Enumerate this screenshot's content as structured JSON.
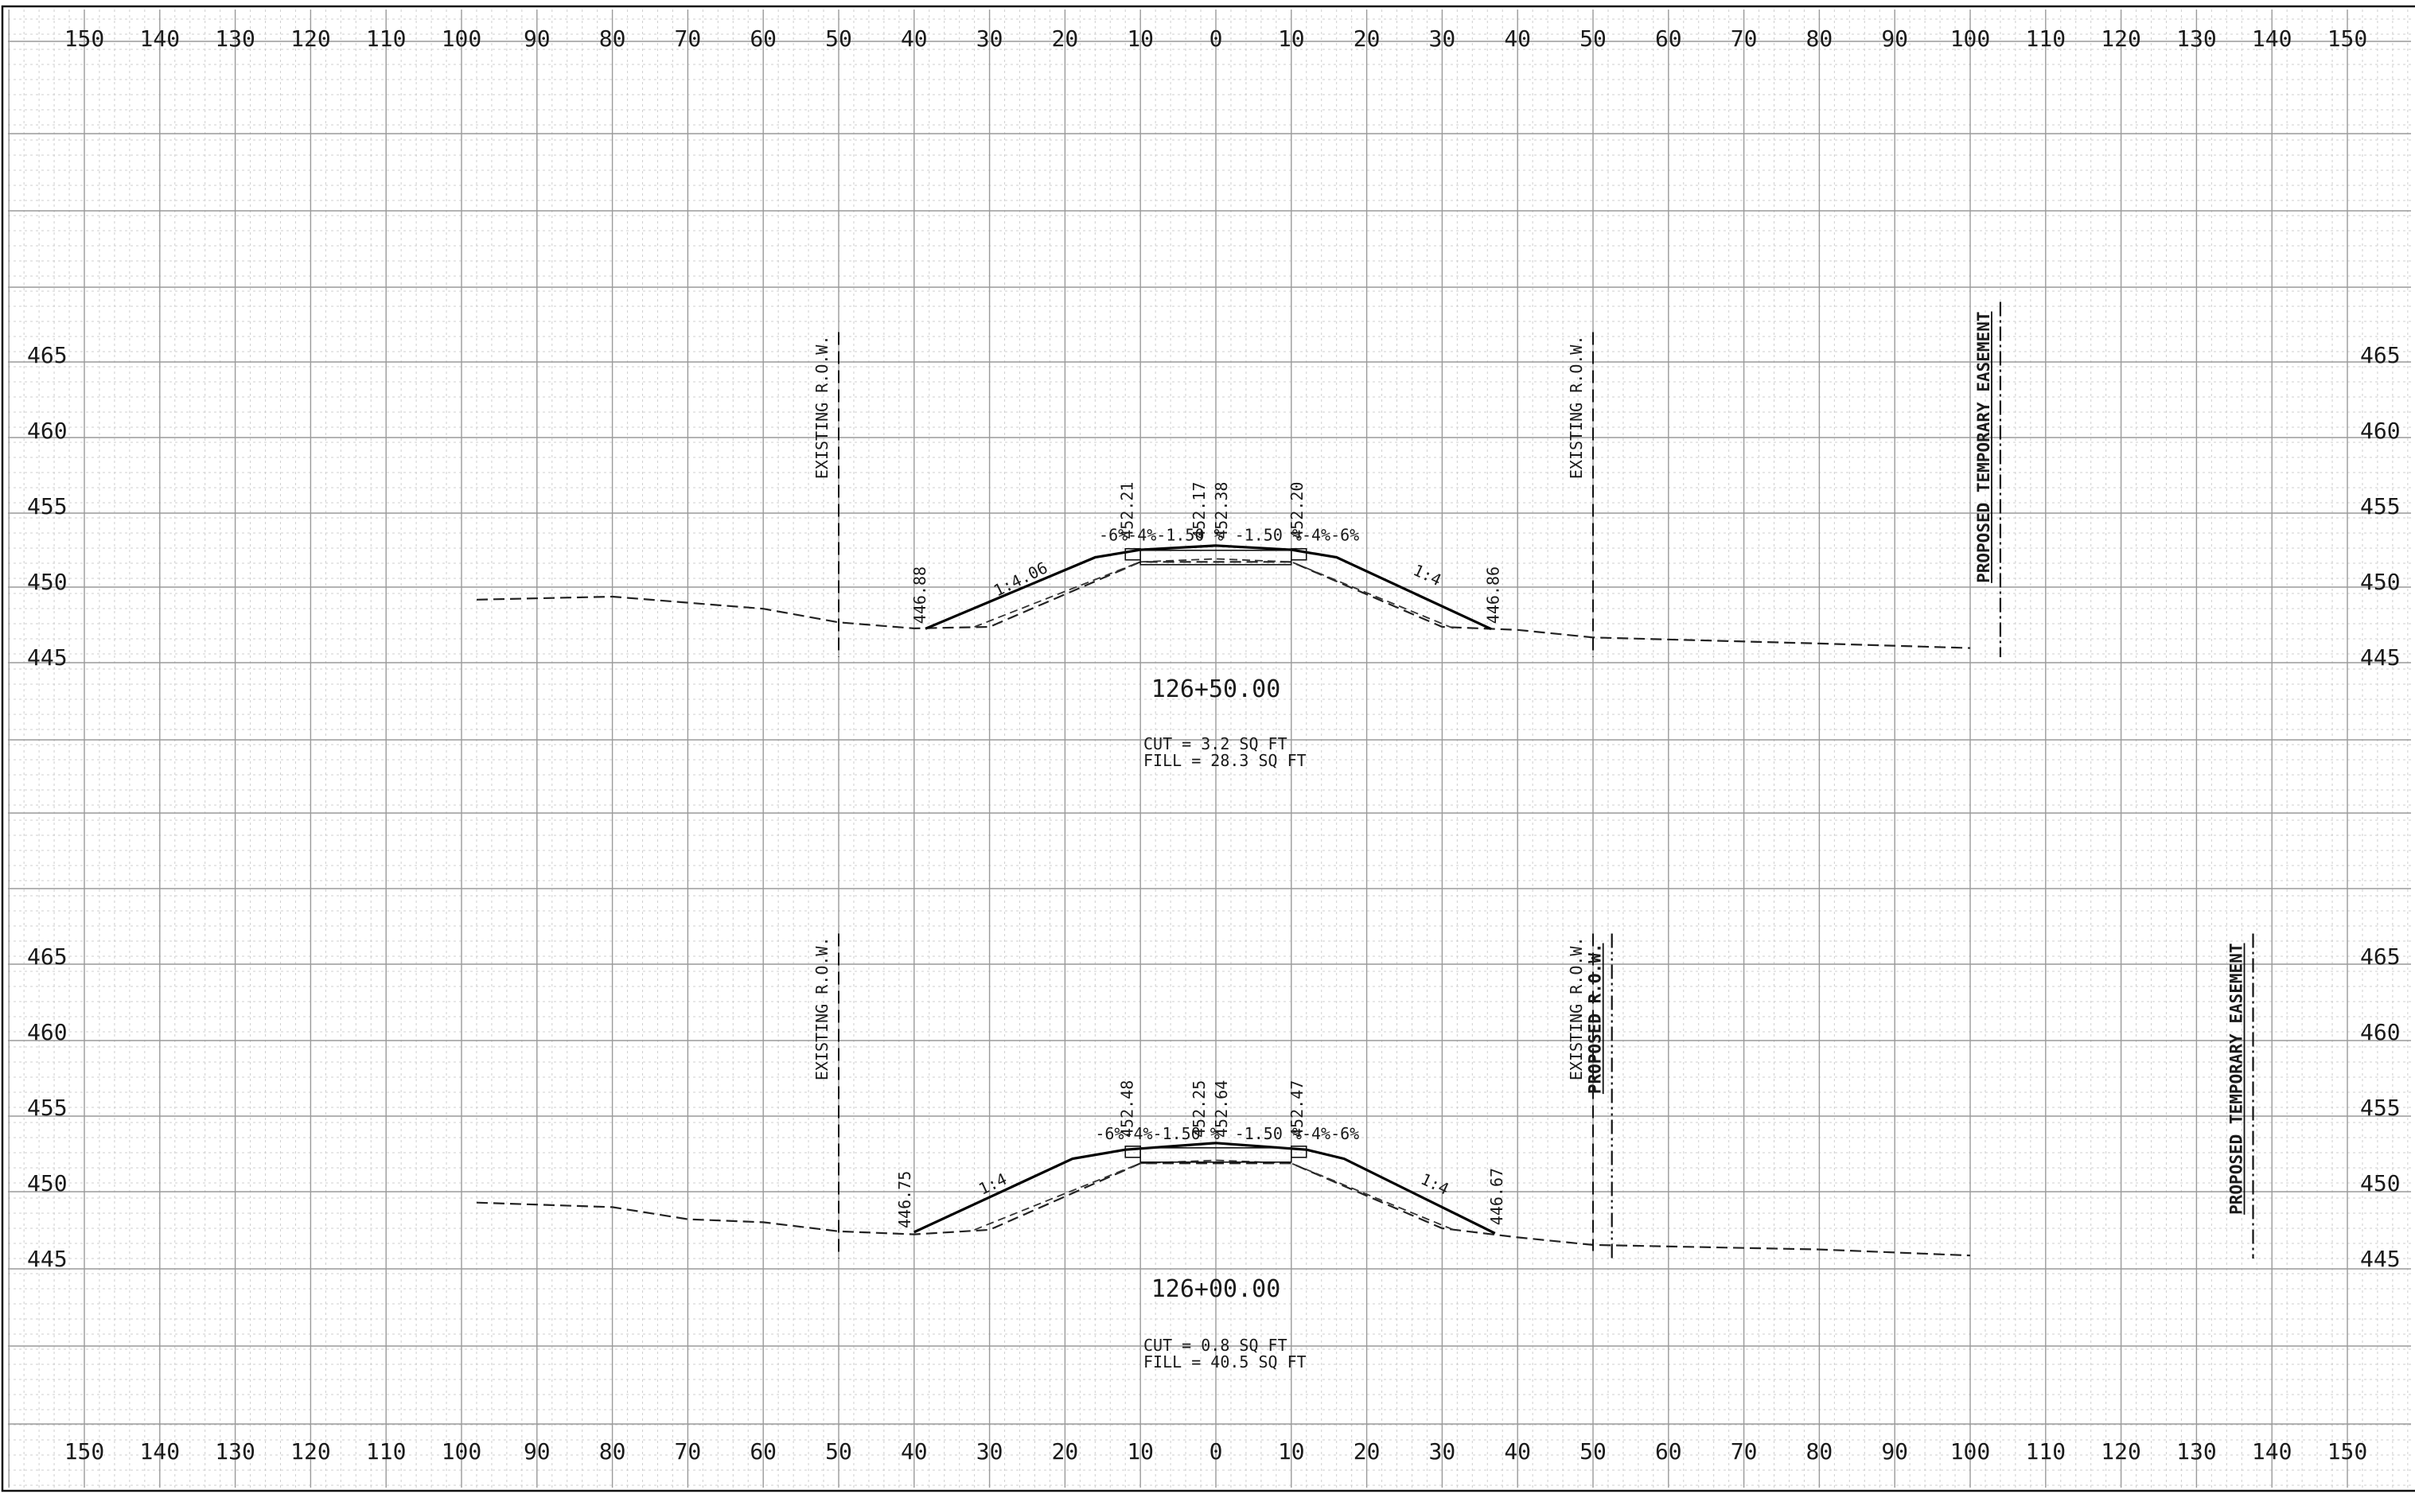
{
  "horizontal_axis": {
    "ticks": [
      {
        "value": -150,
        "label": "150"
      },
      {
        "value": -140,
        "label": "140"
      },
      {
        "value": -130,
        "label": "130"
      },
      {
        "value": -120,
        "label": "120"
      },
      {
        "value": -110,
        "label": "110"
      },
      {
        "value": -100,
        "label": "100"
      },
      {
        "value": -90,
        "label": "90"
      },
      {
        "value": -80,
        "label": "80"
      },
      {
        "value": -70,
        "label": "70"
      },
      {
        "value": -60,
        "label": "60"
      },
      {
        "value": -50,
        "label": "50"
      },
      {
        "value": -40,
        "label": "40"
      },
      {
        "value": -30,
        "label": "30"
      },
      {
        "value": -20,
        "label": "20"
      },
      {
        "value": -10,
        "label": "10"
      },
      {
        "value": 0,
        "label": "0"
      },
      {
        "value": 10,
        "label": "10"
      },
      {
        "value": 20,
        "label": "20"
      },
      {
        "value": 30,
        "label": "30"
      },
      {
        "value": 40,
        "label": "40"
      },
      {
        "value": 50,
        "label": "50"
      },
      {
        "value": 60,
        "label": "60"
      },
      {
        "value": 70,
        "label": "70"
      },
      {
        "value": 80,
        "label": "80"
      },
      {
        "value": 90,
        "label": "90"
      },
      {
        "value": 100,
        "label": "100"
      },
      {
        "value": 110,
        "label": "110"
      },
      {
        "value": 120,
        "label": "120"
      },
      {
        "value": 130,
        "label": "130"
      },
      {
        "value": 140,
        "label": "140"
      },
      {
        "value": 150,
        "label": "150"
      }
    ]
  },
  "sections": [
    {
      "id": "sta-126-50",
      "station_label": "126+50.00",
      "cut_label": "CUT = 3.2 SQ FT",
      "fill_label": "FILL = 28.3 SQ FT",
      "elevation_ticks": [
        "465",
        "460",
        "455",
        "450",
        "445"
      ],
      "existing_ground": [
        [
          -98,
          448.8
        ],
        [
          -80,
          449.0
        ],
        [
          -60,
          448.2
        ],
        [
          -50,
          447.3
        ],
        [
          -40,
          446.9
        ],
        [
          -30,
          447.0
        ],
        [
          -10,
          451.3
        ],
        [
          10,
          451.3
        ],
        [
          30,
          447.0
        ],
        [
          40,
          446.8
        ],
        [
          50,
          446.3
        ],
        [
          80,
          445.9
        ],
        [
          100,
          445.6
        ]
      ],
      "subgrade": [
        [
          -32,
          447.0
        ],
        [
          -10,
          451.3
        ],
        [
          0,
          451.5
        ],
        [
          10,
          451.3
        ],
        [
          32,
          446.8
        ]
      ],
      "proposed_surface": [
        [
          -38.5,
          446.88
        ],
        [
          -16,
          451.6
        ],
        [
          -10,
          452.1
        ],
        [
          0,
          452.38
        ],
        [
          10,
          452.1
        ],
        [
          16,
          451.6
        ],
        [
          36.5,
          446.86
        ]
      ],
      "shoulder_blocks": [
        [
          -12,
          -10
        ],
        [
          10,
          12
        ]
      ],
      "row_lines": [
        {
          "type": "existing",
          "label": "EXISTING R.O.W.",
          "offset": -50,
          "top": 466.5,
          "bottom": 445.0
        },
        {
          "type": "existing",
          "label": "EXISTING R.O.W.",
          "offset": 50,
          "top": 466.5,
          "bottom": 445.0
        },
        {
          "type": "easement",
          "label": "PROPOSED TEMPORARY EASEMENT",
          "offset": 104,
          "top": 468.5,
          "bottom": 445.0
        }
      ],
      "annotations": [
        {
          "text": "446.88",
          "x": -38.5,
          "y": 447.2,
          "rot": -90,
          "tone": "dark"
        },
        {
          "text": "1:4.06",
          "x": -29,
          "y": 449.0,
          "rot": -26,
          "tone": "dark"
        },
        {
          "text": "452.21",
          "x": -11,
          "y": 452.8,
          "rot": -90,
          "tone": "dark"
        },
        {
          "text": "452.17",
          "x": -1.5,
          "y": 452.8,
          "rot": -90,
          "tone": "light"
        },
        {
          "text": "452.38",
          "x": 1.5,
          "y": 452.8,
          "rot": -90,
          "tone": "dark"
        },
        {
          "text": "452.20",
          "x": 11.5,
          "y": 452.8,
          "rot": -90,
          "tone": "dark"
        },
        {
          "text": "1:4",
          "x": 26,
          "y": 450.5,
          "rot": 25,
          "tone": "dark"
        },
        {
          "text": "446.86",
          "x": 37.5,
          "y": 447.2,
          "rot": -90,
          "tone": "dark"
        },
        {
          "text": "-6%-4%-1.50  %",
          "x": -15.5,
          "y": 452.7,
          "rot": 0,
          "tone": "dark"
        },
        {
          "text": "-1.50  %-4%-6%",
          "x": 2.5,
          "y": 452.7,
          "rot": 0,
          "tone": "dark"
        }
      ]
    },
    {
      "id": "sta-126-00",
      "station_label": "126+00.00",
      "cut_label": "CUT = 0.8 SQ FT",
      "fill_label": "FILL = 40.5 SQ FT",
      "elevation_ticks": [
        "465",
        "460",
        "455",
        "450",
        "445"
      ],
      "existing_ground": [
        [
          -98,
          448.7
        ],
        [
          -80,
          448.4
        ],
        [
          -70,
          447.6
        ],
        [
          -60,
          447.4
        ],
        [
          -50,
          446.8
        ],
        [
          -40,
          446.6
        ],
        [
          -30,
          446.9
        ],
        [
          -10,
          451.3
        ],
        [
          10,
          451.3
        ],
        [
          30,
          447.0
        ],
        [
          40,
          446.4
        ],
        [
          50,
          445.9
        ],
        [
          80,
          445.6
        ],
        [
          100,
          445.2
        ]
      ],
      "subgrade": [
        [
          -32,
          446.9
        ],
        [
          -10,
          451.3
        ],
        [
          0,
          451.5
        ],
        [
          10,
          451.3
        ],
        [
          32,
          446.8
        ]
      ],
      "proposed_surface": [
        [
          -40,
          446.75
        ],
        [
          -19,
          451.6
        ],
        [
          -12,
          452.2
        ],
        [
          0,
          452.64
        ],
        [
          12,
          452.2
        ],
        [
          17,
          451.6
        ],
        [
          37,
          446.67
        ]
      ],
      "shoulder_blocks": [
        [
          -12,
          -10
        ],
        [
          10,
          12
        ]
      ],
      "row_lines": [
        {
          "type": "existing",
          "label": "EXISTING R.O.W.",
          "offset": -50,
          "top": 466.5,
          "bottom": 445.0
        },
        {
          "type": "existing",
          "label": "EXISTING R.O.W.",
          "offset": 50,
          "top": 466.5,
          "bottom": 445.5
        },
        {
          "type": "proposed",
          "label": "PROPOSED R.O.W.",
          "offset": 52.5,
          "top": 466.5,
          "bottom": 445.0
        },
        {
          "type": "easement",
          "label": "PROPOSED TEMPORARY EASEMENT",
          "offset": 137.5,
          "top": 466.5,
          "bottom": 445.0
        }
      ],
      "annotations": [
        {
          "text": "446.75",
          "x": -40.5,
          "y": 447.0,
          "rot": -90,
          "tone": "dark"
        },
        {
          "text": "1:4",
          "x": -31,
          "y": 449.2,
          "rot": -25,
          "tone": "dark"
        },
        {
          "text": "452.48",
          "x": -11,
          "y": 453.0,
          "rot": -90,
          "tone": "dark"
        },
        {
          "text": "452.25",
          "x": -1.5,
          "y": 453.0,
          "rot": -90,
          "tone": "light"
        },
        {
          "text": "452.64",
          "x": 1.5,
          "y": 453.0,
          "rot": -90,
          "tone": "dark"
        },
        {
          "text": "452.47",
          "x": 11.5,
          "y": 453.0,
          "rot": -90,
          "tone": "dark"
        },
        {
          "text": "1:4",
          "x": 27,
          "y": 450.0,
          "rot": 25,
          "tone": "dark"
        },
        {
          "text": "446.67",
          "x": 38,
          "y": 447.2,
          "rot": -90,
          "tone": "dark"
        },
        {
          "text": "-6%-4%-1.50  %",
          "x": -16,
          "y": 452.9,
          "rot": 0,
          "tone": "dark"
        },
        {
          "text": "-1.50  %-4%-6%",
          "x": 2.5,
          "y": 452.9,
          "rot": 0,
          "tone": "dark"
        }
      ]
    }
  ]
}
